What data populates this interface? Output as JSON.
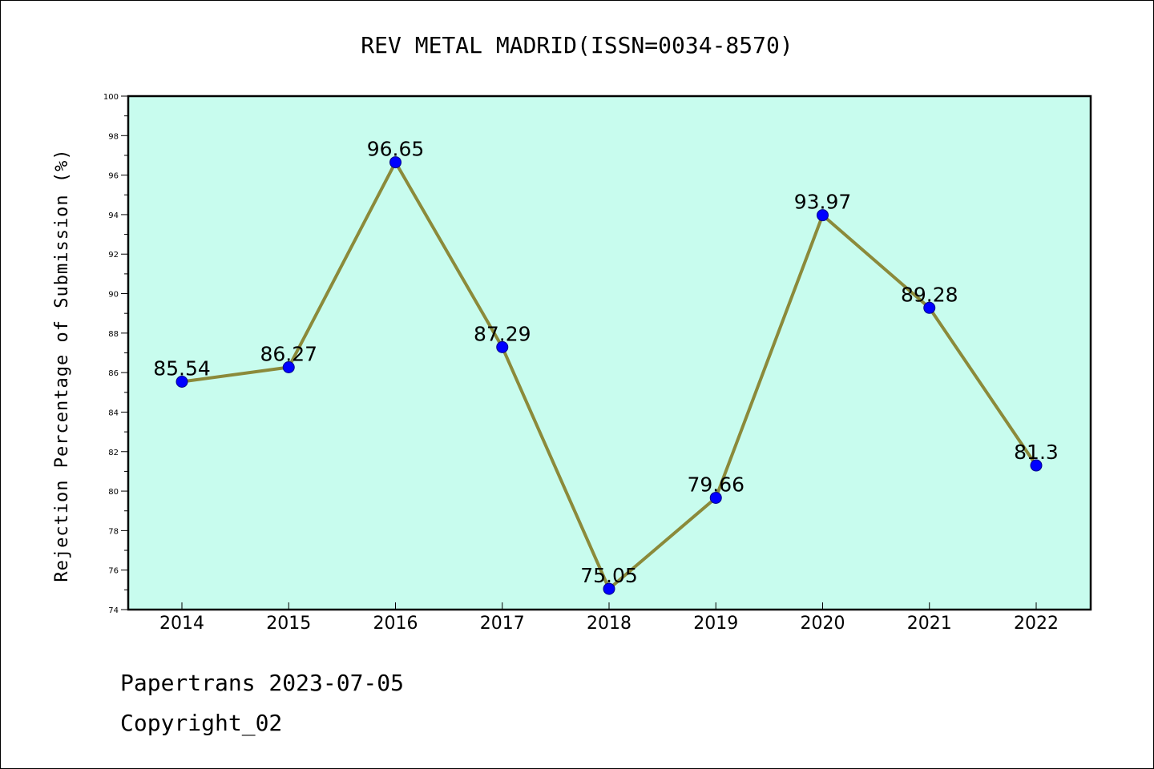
{
  "chart_data": {
    "type": "line",
    "title": "REV METAL MADRID(ISSN=0034-8570)",
    "ylabel": "Rejection Percentage of Submission (%)",
    "xlabel": "",
    "categories": [
      "2014",
      "2015",
      "2016",
      "2017",
      "2018",
      "2019",
      "2020",
      "2021",
      "2022"
    ],
    "series": [
      {
        "values": [
          85.54,
          86.27,
          96.65,
          87.29,
          75.05,
          79.66,
          93.97,
          89.28,
          81.3
        ],
        "labels": [
          "85.54",
          "86.27",
          "96.65",
          "87.29",
          "75.05",
          "79.66",
          "93.97",
          "89.28",
          "81.3"
        ]
      }
    ],
    "ylim": [
      74,
      100
    ],
    "yticks": [
      74,
      76,
      78,
      80,
      82,
      84,
      86,
      88,
      90,
      92,
      94,
      96,
      98,
      100
    ],
    "grid": false,
    "colors": {
      "plot_background": "#c8fcee",
      "line": "#8b8a3a",
      "marker": "#0000ff"
    }
  },
  "footer": {
    "line1": "Papertrans 2023-07-05",
    "line2": "Copyright_02"
  }
}
